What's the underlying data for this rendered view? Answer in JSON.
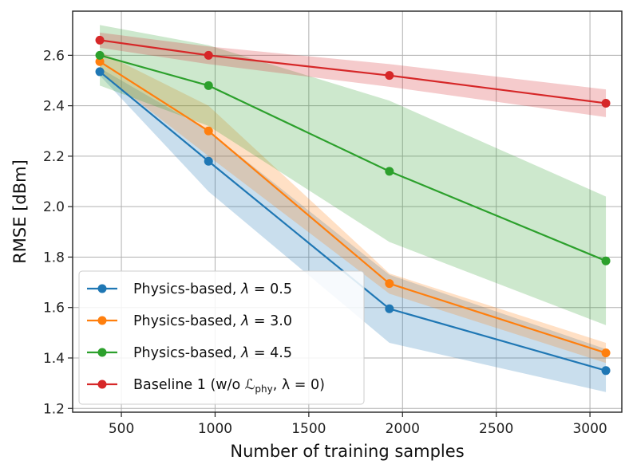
{
  "chart_data": {
    "type": "line",
    "xlabel": "Number of training samples",
    "ylabel": "RMSE [dBm]",
    "xlim": [
      240,
      3170
    ],
    "ylim": [
      1.185,
      2.775
    ],
    "xticks": [
      500,
      1000,
      1500,
      2000,
      2500,
      3000
    ],
    "xtick_labels": [
      "500",
      "1000",
      "1500",
      "2000",
      "2500",
      "3000"
    ],
    "yticks": [
      1.2,
      1.4,
      1.6,
      1.8,
      2.0,
      2.2,
      2.4,
      2.6
    ],
    "ytick_labels": [
      "1.2",
      "1.4",
      "1.6",
      "1.8",
      "2.0",
      "2.2",
      "2.4",
      "2.6"
    ],
    "grid": true,
    "legend_position": "lower-left",
    "x": [
      385,
      965,
      1930,
      3085
    ],
    "series": [
      {
        "name": "Physics-based, λ = 0.5",
        "legend_main": "Physics-based, ",
        "legend_var": "λ",
        "legend_tail": " = 0.5",
        "color": "#1f77b4",
        "values": [
          2.535,
          2.18,
          1.595,
          1.35
        ],
        "lower": [
          2.52,
          2.06,
          1.46,
          1.265
        ],
        "upper": [
          2.55,
          2.3,
          1.73,
          1.435
        ]
      },
      {
        "name": "Physics-based, λ = 3.0",
        "legend_main": "Physics-based, ",
        "legend_var": "λ",
        "legend_tail": " = 3.0",
        "color": "#ff7f0e",
        "values": [
          2.575,
          2.3,
          1.695,
          1.42
        ],
        "lower": [
          2.535,
          2.2,
          1.655,
          1.38
        ],
        "upper": [
          2.615,
          2.4,
          1.735,
          1.46
        ]
      },
      {
        "name": "Physics-based, λ = 4.5",
        "legend_main": "Physics-based, ",
        "legend_var": "λ",
        "legend_tail": " = 4.5",
        "color": "#2ca02c",
        "values": [
          2.6,
          2.48,
          2.14,
          1.785
        ],
        "lower": [
          2.48,
          2.32,
          1.86,
          1.53
        ],
        "upper": [
          2.72,
          2.64,
          2.42,
          2.04
        ]
      },
      {
        "name": "Baseline 1 (w/o ℒphy, λ = 0)",
        "legend_main": "Baseline 1 (w/o ",
        "legend_var": "ℒ",
        "legend_sub": "phy",
        "legend_tail": ", λ = 0)",
        "color": "#d62728",
        "values": [
          2.66,
          2.6,
          2.52,
          2.41
        ],
        "lower": [
          2.63,
          2.565,
          2.475,
          2.355
        ],
        "upper": [
          2.69,
          2.635,
          2.565,
          2.465
        ]
      }
    ]
  }
}
